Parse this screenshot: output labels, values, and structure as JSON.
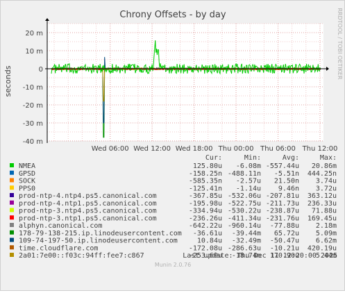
{
  "chart_data": {
    "type": "line",
    "title": "Chrony Offsets - by day",
    "ylabel": "seconds",
    "ylim": [
      -40,
      25
    ],
    "y_ticks": [
      {
        "value": 20,
        "label": "20 m"
      },
      {
        "value": 10,
        "label": "10 m"
      },
      {
        "value": 0,
        "label": "0"
      },
      {
        "value": -10,
        "label": "-10 m"
      },
      {
        "value": -20,
        "label": "-20 m"
      },
      {
        "value": -30,
        "label": "-30 m"
      },
      {
        "value": -40,
        "label": "-40 m"
      }
    ],
    "x_range_hours": [
      3.0,
      12.5
    ],
    "x_ticks": [
      {
        "label": "Wed 06:00",
        "hour": 6
      },
      {
        "label": "Wed 12:00",
        "hour": 12
      },
      {
        "label": "Wed 18:00",
        "hour": 18
      },
      {
        "label": "Thu 00:00",
        "hour": 24
      },
      {
        "label": "Thu 06:00",
        "hour": 30
      },
      {
        "label": "Thu 12:00",
        "hour": 36
      }
    ],
    "grid": true,
    "side_label": "RRDTOOL / TOBI OETIKER",
    "legend_headers": [
      "Cur:",
      "Min:",
      "Avg:",
      "Max:"
    ],
    "series": [
      {
        "name": "NMEA",
        "color": "#00cc00",
        "cur": "125.80u",
        "min": "-6.08m",
        "avg": "-557.44u",
        "max": "20.86m"
      },
      {
        "name": "GPSD",
        "color": "#0066b3",
        "cur": "-158.25n",
        "min": "-488.11n",
        "avg": "-5.51n",
        "max": "444.25n"
      },
      {
        "name": "SOCK",
        "color": "#ff8000",
        "cur": "-585.35n",
        "min": "-2.57u",
        "avg": "21.50n",
        "max": "3.74u"
      },
      {
        "name": "PPS0",
        "color": "#ffcc00",
        "cur": "-125.41n",
        "min": "-1.14u",
        "avg": "9.46n",
        "max": "3.72u"
      },
      {
        "name": "prod-ntp-4.ntp4.ps5.canonical.com",
        "color": "#330099",
        "cur": "-367.85u",
        "min": "-532.06u",
        "avg": "-207.81u",
        "max": "363.12u"
      },
      {
        "name": "prod-ntp-4.ntp1.ps5.canonical.com",
        "color": "#990099",
        "cur": "-195.98u",
        "min": "-522.75u",
        "avg": "-211.73u",
        "max": "236.33u"
      },
      {
        "name": "prod-ntp-3.ntp4.ps5.canonical.com",
        "color": "#ccff00",
        "cur": "-334.94u",
        "min": "-530.22u",
        "avg": "-238.87u",
        "max": "71.88u"
      },
      {
        "name": "prod-ntp-3.ntp1.ps5.canonical.com",
        "color": "#ff0000",
        "cur": "-236.26u",
        "min": "-411.34u",
        "avg": "-231.76u",
        "max": "169.45u"
      },
      {
        "name": "alphyn.canonical.com",
        "color": "#808080",
        "cur": "-642.22u",
        "min": "-960.14u",
        "avg": "-77.88u",
        "max": "2.18m"
      },
      {
        "name": "178-79-138-215.ip.linodeusercontent.com",
        "color": "#008f00",
        "cur": "-36.61u",
        "min": "-39.44m",
        "avg": "65.72u",
        "max": "5.09m"
      },
      {
        "name": "109-74-197-50.ip.linodeusercontent.com",
        "color": "#00487d",
        "cur": "10.84u",
        "min": "-32.49m",
        "avg": "-50.47u",
        "max": "6.62m"
      },
      {
        "name": "time.cloudflare.com",
        "color": "#b35a00",
        "cur": "-172.08u",
        "min": "-286.63u",
        "avg": "-10.21u",
        "max": "420.19u"
      },
      {
        "name": "2a01:7e00::f03c:94ff:fee7:c867",
        "color": "#b38f00",
        "cur": "-253.60u",
        "min": "-18.74m",
        "avg": "170.90u",
        "max": "5.44m"
      }
    ]
  },
  "footer": {
    "last_update": "Last update: Thu Dec 11 12:20:00 2025",
    "version": "Munin 2.0.76"
  }
}
